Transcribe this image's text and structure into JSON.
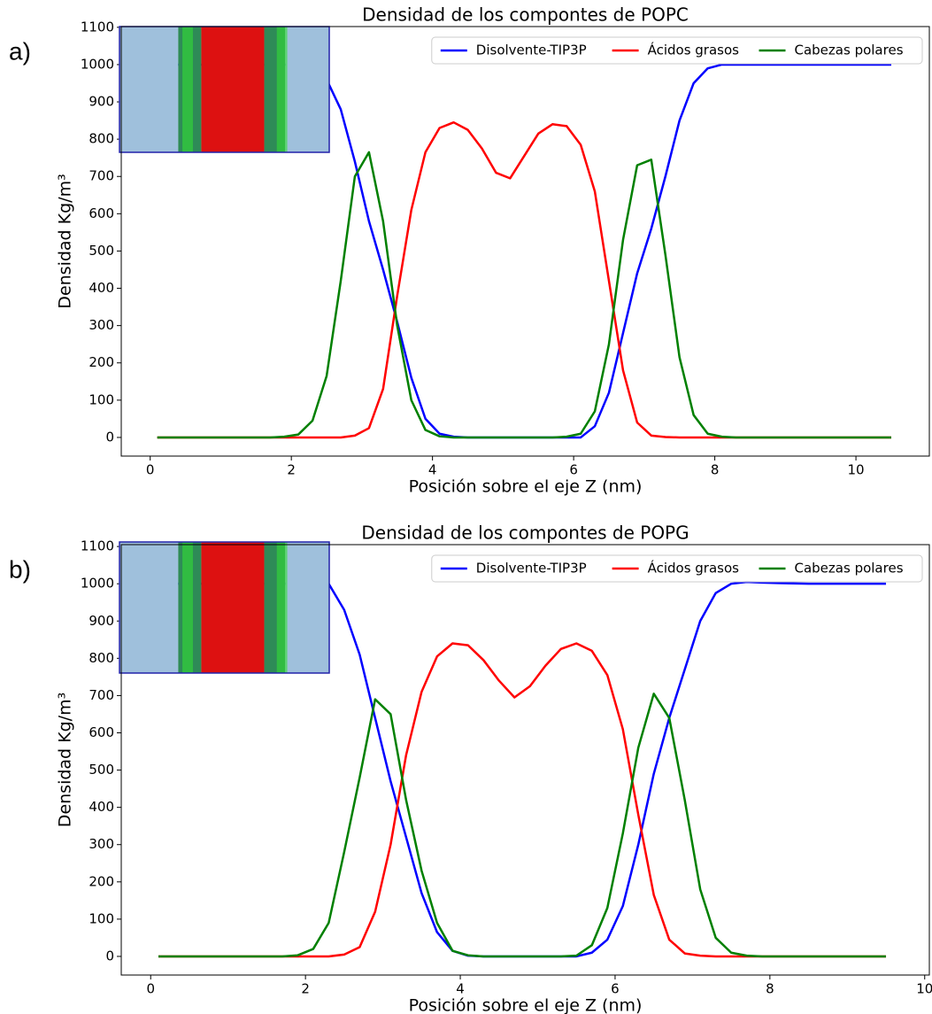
{
  "chart_data": [
    {
      "type": "line",
      "panel_label": "a)",
      "title": "Densidad de los compontes de POPC",
      "xlabel": "Posición sobre el eje Z (nm)",
      "ylabel": "Densidad Kg/m³",
      "x": [
        0.1,
        0.3,
        0.5,
        0.7,
        0.9,
        1.1,
        1.3,
        1.5,
        1.7,
        1.9,
        2.1,
        2.3,
        2.5,
        2.7,
        2.9,
        3.1,
        3.3,
        3.5,
        3.7,
        3.9,
        4.1,
        4.3,
        4.5,
        4.7,
        4.9,
        5.1,
        5.3,
        5.5,
        5.7,
        5.9,
        6.1,
        6.3,
        6.5,
        6.7,
        6.9,
        7.1,
        7.3,
        7.5,
        7.7,
        7.9,
        8.1,
        8.3,
        8.5,
        8.7,
        8.9,
        9.1,
        9.3,
        9.5,
        9.7,
        9.9,
        10.1,
        10.3,
        10.5
      ],
      "series": [
        {
          "name": "Disolvente-TIP3P",
          "color": "#0000ff",
          "values": [
            1000,
            1000,
            1000,
            1000,
            1000,
            1000,
            1000,
            1000,
            1000,
            1000,
            1000,
            990,
            960,
            880,
            740,
            580,
            450,
            310,
            160,
            50,
            10,
            2,
            0,
            0,
            0,
            0,
            0,
            0,
            0,
            0,
            0,
            30,
            120,
            280,
            440,
            560,
            700,
            850,
            950,
            990,
            1000,
            1000,
            1000,
            1000,
            1000,
            1000,
            1000,
            1000,
            1000,
            1000,
            1000,
            1000,
            1000
          ]
        },
        {
          "name": "Ácidos grasos",
          "color": "#ff0000",
          "values": [
            0,
            0,
            0,
            0,
            0,
            0,
            0,
            0,
            0,
            0,
            0,
            0,
            0,
            0,
            5,
            25,
            130,
            380,
            610,
            765,
            830,
            845,
            825,
            775,
            710,
            695,
            755,
            815,
            840,
            835,
            785,
            660,
            420,
            180,
            40,
            5,
            1,
            0,
            0,
            0,
            0,
            0,
            0,
            0,
            0,
            0,
            0,
            0,
            0,
            0,
            0,
            0,
            0
          ]
        },
        {
          "name": "Cabezas polares",
          "color": "#008000",
          "values": [
            0,
            0,
            0,
            0,
            0,
            0,
            0,
            0,
            0,
            2,
            8,
            45,
            165,
            420,
            700,
            765,
            580,
            300,
            100,
            20,
            3,
            0,
            0,
            0,
            0,
            0,
            0,
            0,
            0,
            2,
            10,
            70,
            250,
            530,
            730,
            745,
            490,
            215,
            60,
            10,
            2,
            0,
            0,
            0,
            0,
            0,
            0,
            0,
            0,
            0,
            0,
            0,
            0
          ]
        }
      ],
      "xlim": [
        -0.41,
        11.04
      ],
      "xticks": [
        0,
        2,
        4,
        6,
        8,
        10
      ],
      "ylim": [
        -50,
        1102
      ],
      "yticks": [
        0,
        100,
        200,
        300,
        400,
        500,
        600,
        700,
        800,
        900,
        1000,
        1100
      ],
      "legend": "upper right"
    },
    {
      "type": "line",
      "panel_label": "b)",
      "title": "Densidad de los compontes de POPG",
      "xlabel": "Posición sobre el eje Z (nm)",
      "ylabel": "Densidad Kg/m³",
      "x": [
        0.1,
        0.3,
        0.5,
        0.7,
        0.9,
        1.1,
        1.3,
        1.5,
        1.7,
        1.9,
        2.1,
        2.3,
        2.5,
        2.7,
        2.9,
        3.1,
        3.3,
        3.5,
        3.7,
        3.9,
        4.1,
        4.3,
        4.5,
        4.7,
        4.9,
        5.1,
        5.3,
        5.5,
        5.7,
        5.9,
        6.1,
        6.3,
        6.5,
        6.7,
        6.9,
        7.1,
        7.3,
        7.5,
        7.7,
        7.9,
        8.1,
        8.3,
        8.5,
        8.7,
        8.9,
        9.1,
        9.3,
        9.5
      ],
      "series": [
        {
          "name": "Disolvente-TIP3P",
          "color": "#0000ff",
          "values": [
            1000,
            1000,
            1000,
            1000,
            1000,
            1000,
            1000,
            1000,
            1000,
            1000,
            1000,
            1000,
            930,
            810,
            640,
            470,
            320,
            170,
            65,
            15,
            2,
            0,
            0,
            0,
            0,
            0,
            0,
            0,
            10,
            45,
            135,
            300,
            490,
            640,
            770,
            900,
            975,
            1000,
            1005,
            1003,
            1002,
            1001,
            1000,
            1000,
            1000,
            1000,
            1000,
            1000
          ]
        },
        {
          "name": "Ácidos grasos",
          "color": "#ff0000",
          "values": [
            0,
            0,
            0,
            0,
            0,
            0,
            0,
            0,
            0,
            0,
            0,
            0,
            5,
            25,
            120,
            300,
            540,
            710,
            805,
            840,
            835,
            795,
            740,
            695,
            725,
            780,
            825,
            840,
            820,
            755,
            610,
            380,
            165,
            45,
            8,
            2,
            0,
            0,
            0,
            0,
            0,
            0,
            0,
            0,
            0,
            0,
            0,
            0
          ]
        },
        {
          "name": "Cabezas polares",
          "color": "#008000",
          "values": [
            0,
            0,
            0,
            0,
            0,
            0,
            0,
            0,
            0,
            3,
            20,
            90,
            280,
            480,
            690,
            650,
            420,
            230,
            90,
            15,
            3,
            0,
            0,
            0,
            0,
            0,
            0,
            2,
            30,
            130,
            330,
            560,
            705,
            640,
            420,
            180,
            50,
            10,
            2,
            0,
            0,
            0,
            0,
            0,
            0,
            0,
            0,
            0
          ]
        }
      ],
      "xlim": [
        -0.38,
        10.06
      ],
      "xticks": [
        0,
        2,
        4,
        6,
        8,
        10
      ],
      "ylim": [
        -50,
        1105
      ],
      "yticks": [
        0,
        100,
        200,
        300,
        400,
        500,
        600,
        700,
        800,
        900,
        1000,
        1100
      ],
      "legend": "upper right"
    }
  ]
}
